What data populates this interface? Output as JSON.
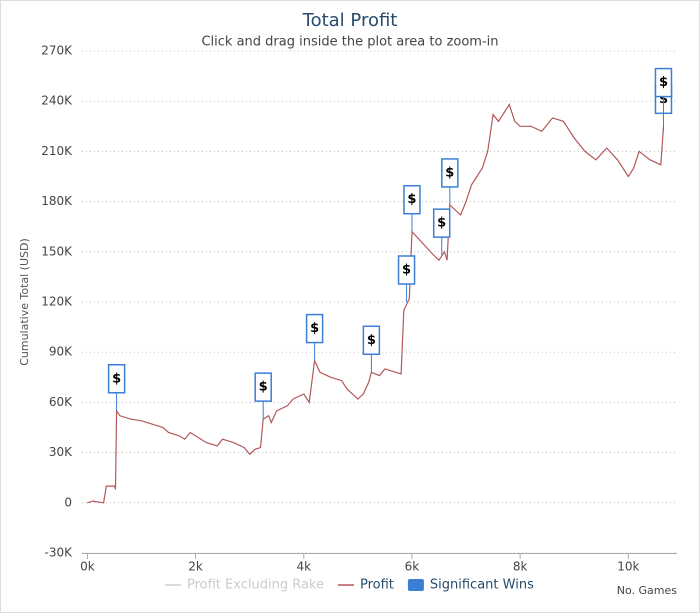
{
  "chart_data": {
    "type": "line",
    "title": "Total Profit",
    "subtitle": "Click and drag inside the plot area to zoom-in",
    "y_label": "Cumulative Total (USD)",
    "x_label": "No. Games",
    "xlim": [
      -100,
      10900
    ],
    "ylim": [
      -30000,
      270000
    ],
    "xticks": [
      {
        "value": 0,
        "label": "0k"
      },
      {
        "value": 2000,
        "label": "2k"
      },
      {
        "value": 4000,
        "label": "4k"
      },
      {
        "value": 6000,
        "label": "6k"
      },
      {
        "value": 8000,
        "label": "8k"
      },
      {
        "value": 10000,
        "label": "10k"
      }
    ],
    "yticks": [
      {
        "value": -30000,
        "label": "-30K"
      },
      {
        "value": 0,
        "label": "0"
      },
      {
        "value": 30000,
        "label": "30K"
      },
      {
        "value": 60000,
        "label": "60K"
      },
      {
        "value": 90000,
        "label": "90K"
      },
      {
        "value": 120000,
        "label": "120K"
      },
      {
        "value": 150000,
        "label": "150K"
      },
      {
        "value": 180000,
        "label": "180K"
      },
      {
        "value": 210000,
        "label": "210K"
      },
      {
        "value": 240000,
        "label": "240K"
      },
      {
        "value": 270000,
        "label": "270K"
      }
    ],
    "grid": true,
    "legend": "bottom",
    "series": [
      {
        "name": "Profit Excluding Rake",
        "color": "#cccccc",
        "visible": false
      },
      {
        "name": "Profit",
        "color": "#b5585a",
        "x": [
          0,
          100,
          300,
          350,
          500,
          520,
          540,
          600,
          800,
          1000,
          1200,
          1400,
          1500,
          1700,
          1800,
          1900,
          2000,
          2200,
          2400,
          2500,
          2700,
          2900,
          3000,
          3100,
          3200,
          3250,
          3350,
          3400,
          3500,
          3700,
          3800,
          4000,
          4100,
          4200,
          4300,
          4500,
          4700,
          4800,
          5000,
          5100,
          5200,
          5250,
          5400,
          5500,
          5700,
          5800,
          5850,
          5950,
          6000,
          6200,
          6400,
          6500,
          6600,
          6650,
          6700,
          6800,
          6900,
          7000,
          7100,
          7200,
          7300,
          7400,
          7500,
          7600,
          7800,
          7900,
          8000,
          8200,
          8400,
          8600,
          8800,
          9000,
          9200,
          9400,
          9600,
          9800,
          10000,
          10100,
          10200,
          10400,
          10600,
          10650
        ],
        "values": [
          0,
          1000,
          0,
          10000,
          10000,
          8000,
          55000,
          52000,
          50000,
          49000,
          47000,
          45000,
          42000,
          40000,
          38000,
          42000,
          40000,
          36000,
          34000,
          38000,
          36000,
          33000,
          29000,
          32000,
          33000,
          50000,
          52000,
          48000,
          55000,
          58000,
          62000,
          65000,
          60000,
          85000,
          78000,
          75000,
          73000,
          68000,
          62000,
          65000,
          72000,
          78000,
          76000,
          80000,
          78000,
          77000,
          115000,
          122000,
          162000,
          155000,
          148000,
          145000,
          150000,
          145000,
          178000,
          175000,
          172000,
          180000,
          190000,
          195000,
          200000,
          210000,
          232000,
          228000,
          238000,
          228000,
          225000,
          225000,
          222000,
          230000,
          228000,
          218000,
          210000,
          205000,
          212000,
          205000,
          195000,
          200000,
          210000,
          205000,
          202000,
          225000
        ]
      },
      {
        "name": "Significant Wins",
        "color": "#3a7fd5",
        "flag_label": "$",
        "x": [
          540,
          3250,
          4200,
          5250,
          5900,
          6000,
          6550,
          6700,
          10650,
          10650
        ],
        "values": [
          55000,
          50000,
          85000,
          78000,
          120000,
          162000,
          148000,
          178000,
          222000,
          232000
        ]
      }
    ]
  }
}
